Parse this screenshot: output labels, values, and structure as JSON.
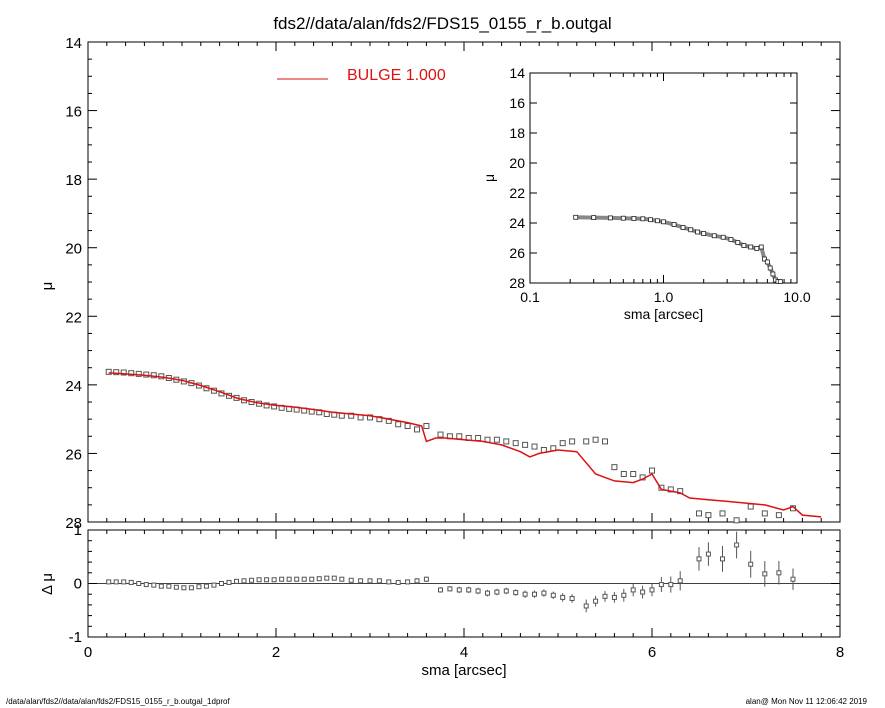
{
  "title": "fds2//data/alan/fds2/FDS15_0155_r_b.outgal",
  "footer_left": "/data/alan/fds2//data/alan/fds2/FDS15_0155_r_b.outgal_1dprof",
  "footer_right": "alan@  Mon Nov 11 12:06:42 2019",
  "colors": {
    "model": "#dd1111",
    "data": "#555555",
    "axis": "#000000"
  },
  "chart_data": [
    {
      "id": "main",
      "type": "scatter",
      "xlabel": "sma [arcsec]",
      "ylabel": "μ",
      "xlim": [
        0,
        8
      ],
      "ylim": [
        28,
        14
      ],
      "y_inverted": true,
      "x_ticks": [
        0,
        2,
        4,
        6,
        8
      ],
      "y_ticks": [
        14,
        16,
        18,
        20,
        22,
        24,
        26,
        28
      ],
      "legend": {
        "label": "BULGE  1.000",
        "placement": "top-center"
      },
      "series": [
        {
          "name": "BULGE  1.000",
          "kind": "line",
          "x": [
            0.22,
            0.4,
            0.6,
            0.8,
            1.0,
            1.2,
            1.4,
            1.6,
            1.8,
            2.0,
            2.2,
            2.4,
            2.6,
            2.8,
            3.0,
            3.2,
            3.4,
            3.55,
            3.6,
            3.7,
            3.8,
            4.0,
            4.2,
            4.4,
            4.6,
            4.7,
            4.8,
            5.0,
            5.2,
            5.4,
            5.6,
            5.8,
            5.9,
            6.0,
            6.1,
            6.2,
            6.3,
            6.4,
            6.6,
            6.8,
            7.0,
            7.2,
            7.4,
            7.5,
            7.6,
            7.8
          ],
          "y": [
            23.65,
            23.68,
            23.72,
            23.78,
            23.87,
            24.02,
            24.2,
            24.4,
            24.52,
            24.6,
            24.65,
            24.72,
            24.8,
            24.85,
            24.9,
            25.0,
            25.1,
            25.2,
            25.65,
            25.55,
            25.55,
            25.6,
            25.65,
            25.75,
            25.95,
            26.1,
            26.0,
            25.9,
            25.95,
            26.6,
            26.8,
            26.85,
            26.75,
            26.6,
            27.05,
            27.1,
            27.15,
            27.3,
            27.35,
            27.4,
            27.45,
            27.5,
            27.65,
            27.55,
            27.8,
            27.85
          ]
        },
        {
          "name": "",
          "kind": "points",
          "x": [
            0.22,
            0.3,
            0.38,
            0.46,
            0.54,
            0.62,
            0.7,
            0.78,
            0.86,
            0.94,
            1.02,
            1.1,
            1.18,
            1.26,
            1.34,
            1.42,
            1.5,
            1.58,
            1.66,
            1.74,
            1.82,
            1.9,
            1.98,
            2.06,
            2.14,
            2.22,
            2.3,
            2.38,
            2.46,
            2.54,
            2.62,
            2.7,
            2.8,
            2.9,
            3.0,
            3.1,
            3.2,
            3.3,
            3.4,
            3.5,
            3.6,
            3.75,
            3.85,
            3.95,
            4.05,
            4.15,
            4.25,
            4.35,
            4.45,
            4.55,
            4.65,
            4.75,
            4.85,
            4.95,
            5.05,
            5.15,
            5.3,
            5.4,
            5.5,
            5.6,
            5.7,
            5.8,
            5.9,
            6.0,
            6.1,
            6.2,
            6.3,
            6.5,
            6.6,
            6.75,
            6.9,
            7.05,
            7.2,
            7.35,
            7.5
          ],
          "y": [
            23.62,
            23.63,
            23.64,
            23.66,
            23.68,
            23.7,
            23.72,
            23.75,
            23.8,
            23.85,
            23.9,
            23.95,
            24.02,
            24.1,
            24.17,
            24.25,
            24.32,
            24.38,
            24.45,
            24.5,
            24.55,
            24.6,
            24.63,
            24.67,
            24.7,
            24.72,
            24.75,
            24.78,
            24.8,
            24.85,
            24.87,
            24.9,
            24.9,
            24.95,
            24.95,
            25.0,
            25.05,
            25.15,
            25.2,
            25.3,
            25.2,
            25.45,
            25.5,
            25.5,
            25.55,
            25.55,
            25.6,
            25.6,
            25.65,
            25.7,
            25.75,
            25.8,
            25.9,
            25.85,
            25.7,
            25.65,
            25.65,
            25.6,
            25.65,
            26.4,
            26.6,
            26.6,
            26.7,
            26.5,
            27.0,
            27.05,
            27.1,
            27.75,
            27.8,
            27.75,
            27.95,
            27.55,
            27.75,
            27.8,
            27.6
          ]
        }
      ]
    },
    {
      "id": "residual",
      "type": "scatter",
      "xlabel": "sma [arcsec]",
      "ylabel": "Δ μ",
      "xlim": [
        0,
        8
      ],
      "ylim": [
        -1,
        1
      ],
      "x_ticks": [
        0,
        2,
        4,
        6,
        8
      ],
      "y_ticks": [
        -1,
        0,
        1
      ],
      "reference_line": 0,
      "series": [
        {
          "name": "",
          "kind": "points-with-errors",
          "x": [
            0.22,
            0.3,
            0.38,
            0.46,
            0.54,
            0.62,
            0.7,
            0.78,
            0.86,
            0.94,
            1.02,
            1.1,
            1.18,
            1.26,
            1.34,
            1.42,
            1.5,
            1.58,
            1.66,
            1.74,
            1.82,
            1.9,
            1.98,
            2.06,
            2.14,
            2.22,
            2.3,
            2.38,
            2.46,
            2.54,
            2.62,
            2.7,
            2.8,
            2.9,
            3.0,
            3.1,
            3.2,
            3.3,
            3.4,
            3.5,
            3.6,
            3.75,
            3.85,
            3.95,
            4.05,
            4.15,
            4.25,
            4.35,
            4.45,
            4.55,
            4.65,
            4.75,
            4.85,
            4.95,
            5.05,
            5.15,
            5.3,
            5.4,
            5.5,
            5.6,
            5.7,
            5.8,
            5.9,
            6.0,
            6.1,
            6.2,
            6.3,
            6.5,
            6.6,
            6.75,
            6.9,
            7.05,
            7.2,
            7.35,
            7.5
          ],
          "y": [
            0.03,
            0.03,
            0.03,
            0.02,
            0.0,
            -0.02,
            -0.03,
            -0.05,
            -0.05,
            -0.07,
            -0.08,
            -0.08,
            -0.06,
            -0.05,
            -0.03,
            0.0,
            0.02,
            0.04,
            0.05,
            0.06,
            0.07,
            0.07,
            0.07,
            0.08,
            0.08,
            0.08,
            0.08,
            0.08,
            0.09,
            0.1,
            0.1,
            0.08,
            0.06,
            0.05,
            0.05,
            0.05,
            0.03,
            0.02,
            0.03,
            0.05,
            0.08,
            -0.12,
            -0.1,
            -0.12,
            -0.12,
            -0.14,
            -0.18,
            -0.16,
            -0.14,
            -0.17,
            -0.2,
            -0.2,
            -0.18,
            -0.22,
            -0.26,
            -0.28,
            -0.42,
            -0.33,
            -0.24,
            -0.26,
            -0.22,
            -0.12,
            -0.16,
            -0.12,
            -0.02,
            -0.02,
            0.05,
            0.46,
            0.55,
            0.46,
            0.72,
            0.36,
            0.18,
            0.2,
            0.08
          ],
          "err": [
            0.02,
            0.02,
            0.02,
            0.02,
            0.02,
            0.02,
            0.02,
            0.02,
            0.02,
            0.02,
            0.02,
            0.02,
            0.02,
            0.02,
            0.02,
            0.02,
            0.02,
            0.02,
            0.02,
            0.02,
            0.02,
            0.02,
            0.02,
            0.02,
            0.02,
            0.02,
            0.03,
            0.03,
            0.03,
            0.03,
            0.03,
            0.03,
            0.03,
            0.03,
            0.03,
            0.04,
            0.04,
            0.04,
            0.04,
            0.05,
            0.05,
            0.05,
            0.05,
            0.06,
            0.06,
            0.06,
            0.06,
            0.06,
            0.06,
            0.06,
            0.07,
            0.07,
            0.07,
            0.07,
            0.08,
            0.08,
            0.12,
            0.1,
            0.1,
            0.1,
            0.12,
            0.12,
            0.12,
            0.12,
            0.14,
            0.15,
            0.18,
            0.22,
            0.22,
            0.24,
            0.25,
            0.25,
            0.24,
            0.22,
            0.2
          ]
        }
      ]
    },
    {
      "id": "inset",
      "type": "scatter",
      "xlabel": "sma [arcsec]",
      "ylabel": "μ",
      "x_scale": "log",
      "xlim": [
        0.1,
        10.0
      ],
      "ylim": [
        28,
        14
      ],
      "y_inverted": true,
      "x_tick_labels": [
        "0.1",
        "1.0",
        "10.0"
      ],
      "y_ticks": [
        14,
        16,
        18,
        20,
        22,
        24,
        26,
        28
      ],
      "series": [
        {
          "name": "",
          "kind": "points",
          "x": [
            0.22,
            0.3,
            0.4,
            0.5,
            0.6,
            0.7,
            0.8,
            0.9,
            1.0,
            1.2,
            1.4,
            1.6,
            1.8,
            2.0,
            2.4,
            2.8,
            3.2,
            3.6,
            4.0,
            4.5,
            5.0,
            5.4,
            5.7,
            6.0,
            6.3,
            6.6,
            6.9,
            7.2,
            7.5
          ],
          "y": [
            23.62,
            23.64,
            23.66,
            23.68,
            23.7,
            23.72,
            23.78,
            23.85,
            23.92,
            24.1,
            24.3,
            24.45,
            24.6,
            24.7,
            24.85,
            24.95,
            25.1,
            25.3,
            25.5,
            25.6,
            25.7,
            25.6,
            26.4,
            26.6,
            27.0,
            27.4,
            27.8,
            27.9,
            27.9
          ]
        }
      ]
    }
  ]
}
